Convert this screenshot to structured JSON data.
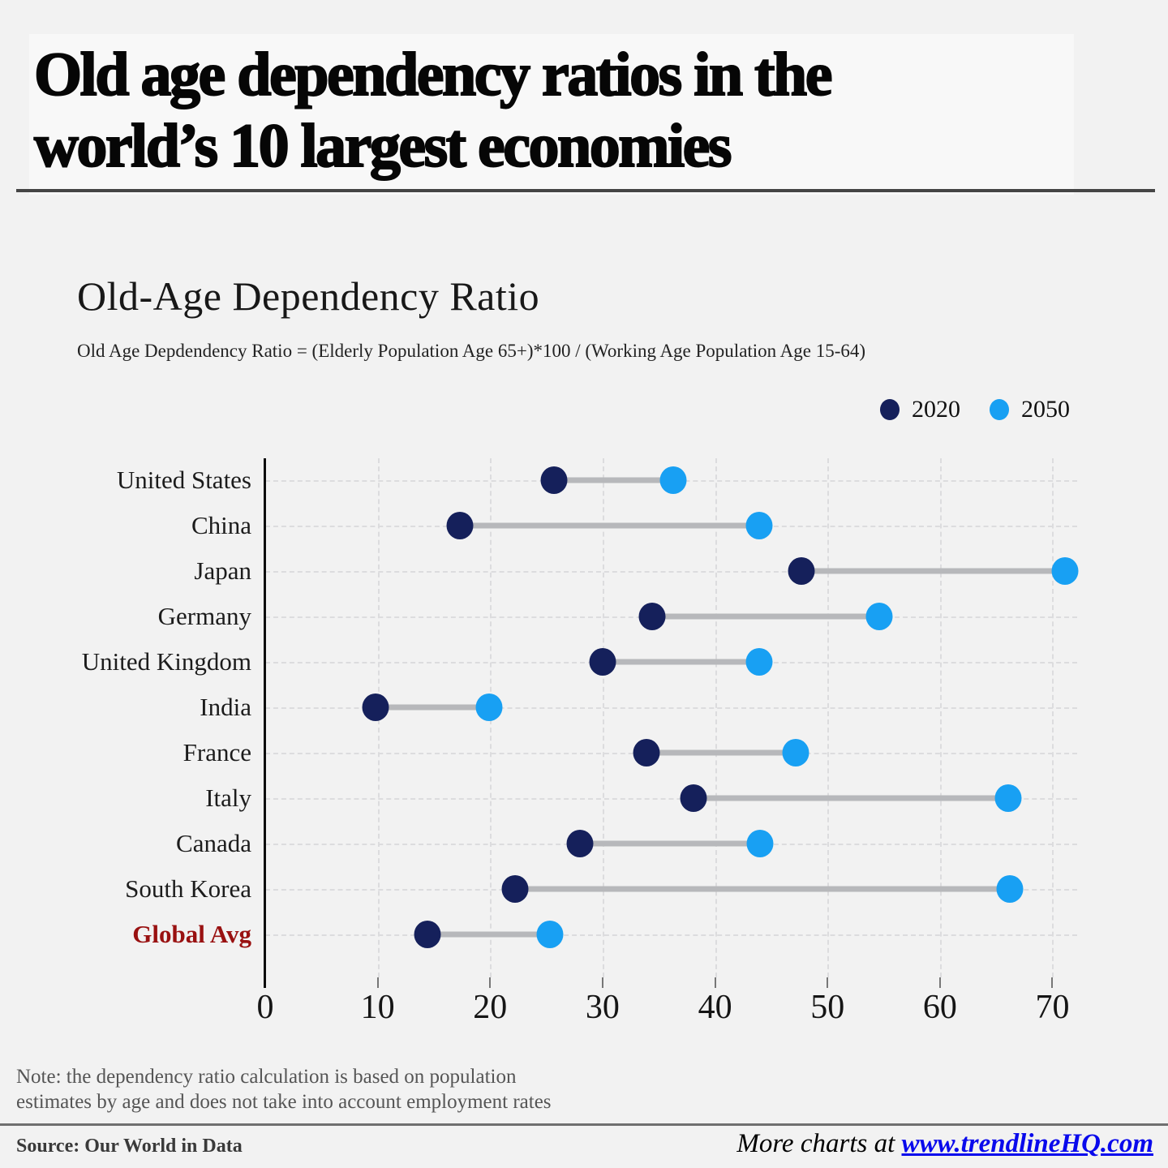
{
  "page": {
    "title_line1": "Old age dependency ratios in the",
    "title_line2": "world’s 10 largest economies"
  },
  "chart": {
    "title": "Old-Age Dependency Ratio",
    "subtitle": "Old Age Depdendency Ratio = (Elderly Population Age 65+)*100 / (Working Age Population Age 15-64)",
    "legend": [
      {
        "label": "2020",
        "color": "#15205b"
      },
      {
        "label": "2050",
        "color": "#18a0f3"
      }
    ]
  },
  "chart_data": {
    "type": "scatter",
    "variant": "dumbbell",
    "orientation": "horizontal",
    "title": "Old-Age Dependency Ratio",
    "categories": [
      "United States",
      "China",
      "Japan",
      "Germany",
      "United Kingdom",
      "India",
      "France",
      "Italy",
      "Canada",
      "South Korea",
      "Global Avg"
    ],
    "series": [
      {
        "name": "2020",
        "color": "#15205b",
        "values": [
          25.7,
          17.3,
          47.7,
          34.4,
          30.0,
          9.8,
          33.9,
          38.1,
          28.0,
          22.2,
          14.4
        ]
      },
      {
        "name": "2050",
        "color": "#18a0f3",
        "values": [
          36.3,
          43.9,
          71.1,
          54.6,
          43.9,
          19.9,
          47.2,
          66.1,
          44.0,
          66.2,
          25.3
        ]
      }
    ],
    "xlabel": "",
    "ylabel": "",
    "xlim": [
      0,
      72.2
    ],
    "xticks": [
      0,
      10,
      20,
      30,
      40,
      50,
      60,
      70
    ],
    "grid": true,
    "legend_position": "top-right",
    "connector_color": "#b7b8bb",
    "highlight_category": {
      "label": "Global Avg",
      "color": "#991111"
    }
  },
  "note": {
    "line1": "Note: the dependency ratio calculation is based on population",
    "line2": "estimates by age and does not take into account employment rates"
  },
  "footer": {
    "source": "Source: Our World in Data",
    "more_prefix": "More charts at ",
    "link": "www.trendlineHQ.com"
  }
}
